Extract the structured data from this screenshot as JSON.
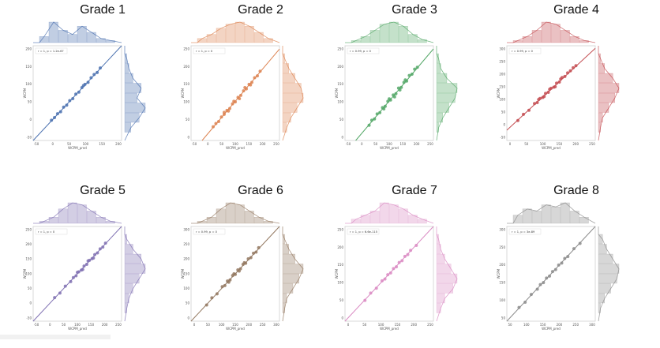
{
  "page": {
    "background": "#ffffff"
  },
  "chart_data": [
    {
      "type": "scatter",
      "title": "Grade 1",
      "color": "#4c72b0",
      "legend": "r = 1, p = 1.2e-67",
      "xlabel": "WCPM_pred",
      "ylabel": "WCPM",
      "xticks": [
        "-50",
        "0",
        "50",
        "100",
        "150",
        "200"
      ],
      "yticks": [
        "-50",
        "0",
        "50",
        "100",
        "150",
        "200"
      ],
      "xlim": [
        -60,
        230
      ],
      "ylim": [
        -60,
        230
      ],
      "points": [
        [
          0,
          2
        ],
        [
          10,
          10
        ],
        [
          20,
          22
        ],
        [
          30,
          28
        ],
        [
          40,
          42
        ],
        [
          50,
          48
        ],
        [
          60,
          62
        ],
        [
          70,
          68
        ],
        [
          80,
          82
        ],
        [
          90,
          88
        ],
        [
          100,
          102
        ],
        [
          105,
          108
        ],
        [
          110,
          112
        ],
        [
          120,
          118
        ],
        [
          130,
          132
        ],
        [
          140,
          142
        ],
        [
          150,
          148
        ],
        [
          160,
          162
        ]
      ],
      "top_hist": [
        30,
        100,
        60,
        40,
        80,
        50,
        20,
        10
      ],
      "right_hist": [
        10,
        20,
        40,
        80,
        60,
        100,
        70,
        30
      ]
    },
    {
      "type": "scatter",
      "title": "Grade 2",
      "color": "#dd8452",
      "legend": "r = 1, p = 0",
      "xlabel": "WCPM_pred",
      "ylabel": "WCPM",
      "xticks": [
        "-50",
        "0",
        "50",
        "100",
        "150",
        "200",
        "250"
      ],
      "yticks": [
        "0",
        "50",
        "100",
        "150",
        "200",
        "250"
      ],
      "xlim": [
        -60,
        260
      ],
      "ylim": [
        -20,
        270
      ],
      "points": [
        [
          20,
          22
        ],
        [
          30,
          32
        ],
        [
          40,
          38
        ],
        [
          50,
          52
        ],
        [
          60,
          60
        ],
        [
          70,
          72
        ],
        [
          80,
          78
        ],
        [
          90,
          92
        ],
        [
          100,
          98
        ],
        [
          110,
          112
        ],
        [
          120,
          118
        ],
        [
          130,
          132
        ],
        [
          140,
          138
        ],
        [
          150,
          152
        ],
        [
          160,
          158
        ],
        [
          170,
          172
        ],
        [
          180,
          178
        ],
        [
          190,
          192
        ],
        [
          60,
          66
        ],
        [
          75,
          70
        ],
        [
          95,
          100
        ],
        [
          115,
          108
        ],
        [
          135,
          142
        ],
        [
          155,
          150
        ]
      ],
      "top_hist": [
        20,
        40,
        70,
        90,
        100,
        80,
        50,
        20
      ],
      "right_hist": [
        10,
        30,
        60,
        90,
        100,
        70,
        40,
        20
      ]
    },
    {
      "type": "scatter",
      "title": "Grade 3",
      "color": "#55a868",
      "legend": "r = 0.99, p = 0",
      "xlabel": "WCPM_pred",
      "ylabel": "WCPM",
      "xticks": [
        "-50",
        "0",
        "50",
        "100",
        "150",
        "200",
        "250"
      ],
      "yticks": [
        "0",
        "50",
        "100",
        "150",
        "200",
        "250"
      ],
      "xlim": [
        -60,
        270
      ],
      "ylim": [
        -20,
        280
      ],
      "points": [
        [
          30,
          28
        ],
        [
          40,
          44
        ],
        [
          50,
          48
        ],
        [
          60,
          64
        ],
        [
          70,
          68
        ],
        [
          80,
          84
        ],
        [
          90,
          88
        ],
        [
          100,
          104
        ],
        [
          110,
          108
        ],
        [
          120,
          124
        ],
        [
          130,
          128
        ],
        [
          140,
          146
        ],
        [
          150,
          148
        ],
        [
          160,
          164
        ],
        [
          170,
          168
        ],
        [
          180,
          186
        ],
        [
          190,
          190
        ],
        [
          200,
          206
        ],
        [
          210,
          212
        ],
        [
          85,
          80
        ],
        [
          105,
          112
        ],
        [
          125,
          118
        ],
        [
          145,
          140
        ],
        [
          165,
          172
        ]
      ],
      "top_hist": [
        10,
        30,
        60,
        90,
        100,
        80,
        40,
        15
      ],
      "right_hist": [
        10,
        20,
        50,
        100,
        90,
        60,
        30,
        10
      ]
    },
    {
      "type": "scatter",
      "title": "Grade 4",
      "color": "#c44e52",
      "legend": "r = 0.99, p = 0",
      "xlabel": "WCPM_pred",
      "ylabel": "WCPM",
      "xticks": [
        "0",
        "50",
        "100",
        "150",
        "200",
        "250"
      ],
      "yticks": [
        "-50",
        "0",
        "50",
        "100",
        "150",
        "200",
        "250",
        "300"
      ],
      "xlim": [
        -20,
        300
      ],
      "ylim": [
        -60,
        310
      ],
      "points": [
        [
          20,
          18
        ],
        [
          40,
          42
        ],
        [
          60,
          58
        ],
        [
          80,
          84
        ],
        [
          90,
          88
        ],
        [
          100,
          104
        ],
        [
          110,
          108
        ],
        [
          120,
          124
        ],
        [
          130,
          128
        ],
        [
          140,
          144
        ],
        [
          150,
          148
        ],
        [
          160,
          164
        ],
        [
          170,
          168
        ],
        [
          180,
          186
        ],
        [
          190,
          190
        ],
        [
          200,
          204
        ],
        [
          210,
          212
        ],
        [
          220,
          224
        ],
        [
          230,
          232
        ],
        [
          95,
          100
        ],
        [
          115,
          112
        ],
        [
          135,
          140
        ],
        [
          155,
          150
        ],
        [
          175,
          180
        ]
      ],
      "top_hist": [
        10,
        30,
        60,
        100,
        90,
        60,
        30,
        10
      ],
      "right_hist": [
        10,
        30,
        70,
        100,
        80,
        50,
        20,
        10
      ]
    },
    {
      "type": "scatter",
      "title": "Grade 5",
      "color": "#8172b3",
      "legend": "r = 1, p = 0",
      "xlabel": "WCPM_pred",
      "ylabel": "WCPM",
      "xticks": [
        "-50",
        "0",
        "50",
        "100",
        "150",
        "200",
        "250"
      ],
      "yticks": [
        "-50",
        "0",
        "50",
        "100",
        "150",
        "200",
        "250"
      ],
      "xlim": [
        -60,
        270
      ],
      "ylim": [
        -60,
        270
      ],
      "points": [
        [
          20,
          22
        ],
        [
          40,
          38
        ],
        [
          60,
          62
        ],
        [
          80,
          78
        ],
        [
          90,
          92
        ],
        [
          100,
          98
        ],
        [
          110,
          112
        ],
        [
          120,
          118
        ],
        [
          130,
          132
        ],
        [
          140,
          138
        ],
        [
          150,
          152
        ],
        [
          160,
          158
        ],
        [
          170,
          172
        ],
        [
          180,
          178
        ],
        [
          190,
          192
        ],
        [
          200,
          198
        ],
        [
          210,
          212
        ],
        [
          105,
          110
        ],
        [
          125,
          120
        ],
        [
          145,
          150
        ],
        [
          165,
          160
        ]
      ],
      "top_hist": [
        10,
        30,
        70,
        100,
        90,
        60,
        30,
        10
      ],
      "right_hist": [
        10,
        40,
        80,
        100,
        70,
        40,
        20,
        10
      ]
    },
    {
      "type": "scatter",
      "title": "Grade 6",
      "color": "#937860",
      "legend": "r = 0.99, p = 0",
      "xlabel": "WCPM_pred",
      "ylabel": "WCPM",
      "xticks": [
        "0",
        "50",
        "100",
        "150",
        "200",
        "250",
        "300"
      ],
      "yticks": [
        "0",
        "50",
        "100",
        "150",
        "200",
        "250",
        "300"
      ],
      "xlim": [
        -20,
        320
      ],
      "ylim": [
        -20,
        320
      ],
      "points": [
        [
          40,
          38
        ],
        [
          60,
          64
        ],
        [
          80,
          78
        ],
        [
          100,
          104
        ],
        [
          110,
          108
        ],
        [
          120,
          124
        ],
        [
          130,
          128
        ],
        [
          140,
          144
        ],
        [
          150,
          148
        ],
        [
          160,
          164
        ],
        [
          170,
          168
        ],
        [
          180,
          184
        ],
        [
          190,
          188
        ],
        [
          200,
          204
        ],
        [
          210,
          208
        ],
        [
          220,
          224
        ],
        [
          230,
          228
        ],
        [
          240,
          244
        ],
        [
          125,
          120
        ],
        [
          145,
          150
        ],
        [
          165,
          160
        ],
        [
          185,
          190
        ]
      ],
      "top_hist": [
        10,
        30,
        70,
        100,
        90,
        60,
        30,
        10
      ],
      "right_hist": [
        10,
        30,
        60,
        100,
        80,
        50,
        20,
        10
      ]
    },
    {
      "type": "scatter",
      "title": "Grade 7",
      "color": "#da8bc3",
      "legend": "r = 1, p = 6.6e-115",
      "xlabel": "WCPM_pred",
      "ylabel": "WCPM",
      "xticks": [
        "0",
        "50",
        "100",
        "150",
        "200",
        "250"
      ],
      "yticks": [
        "0",
        "50",
        "100",
        "150",
        "200",
        "250"
      ],
      "xlim": [
        -20,
        290
      ],
      "ylim": [
        -20,
        290
      ],
      "points": [
        [
          50,
          48
        ],
        [
          70,
          72
        ],
        [
          90,
          88
        ],
        [
          110,
          112
        ],
        [
          120,
          118
        ],
        [
          130,
          132
        ],
        [
          140,
          138
        ],
        [
          150,
          152
        ],
        [
          160,
          158
        ],
        [
          170,
          172
        ],
        [
          180,
          178
        ],
        [
          190,
          192
        ],
        [
          200,
          198
        ],
        [
          210,
          212
        ],
        [
          230,
          228
        ]
      ],
      "top_hist": [
        20,
        40,
        60,
        100,
        90,
        70,
        40,
        20
      ],
      "right_hist": [
        10,
        20,
        40,
        70,
        100,
        80,
        40,
        20
      ]
    },
    {
      "type": "scatter",
      "title": "Grade 8",
      "color": "#8c8c8c",
      "legend": "r = 1, p = 3e-89",
      "xlabel": "WCPM_pred",
      "ylabel": "WCPM",
      "xticks": [
        "50",
        "100",
        "150",
        "200",
        "250",
        "300"
      ],
      "yticks": [
        "50",
        "100",
        "150",
        "200",
        "250",
        "300"
      ],
      "xlim": [
        30,
        320
      ],
      "ylim": [
        30,
        320
      ],
      "points": [
        [
          70,
          72
        ],
        [
          90,
          88
        ],
        [
          110,
          112
        ],
        [
          130,
          128
        ],
        [
          140,
          142
        ],
        [
          150,
          148
        ],
        [
          160,
          162
        ],
        [
          170,
          168
        ],
        [
          180,
          182
        ],
        [
          190,
          188
        ],
        [
          200,
          202
        ],
        [
          210,
          208
        ],
        [
          220,
          222
        ],
        [
          230,
          228
        ],
        [
          250,
          252
        ],
        [
          270,
          268
        ]
      ],
      "top_hist": [
        40,
        70,
        60,
        90,
        80,
        100,
        60,
        30
      ],
      "right_hist": [
        20,
        40,
        70,
        100,
        90,
        60,
        30,
        10
      ]
    }
  ]
}
